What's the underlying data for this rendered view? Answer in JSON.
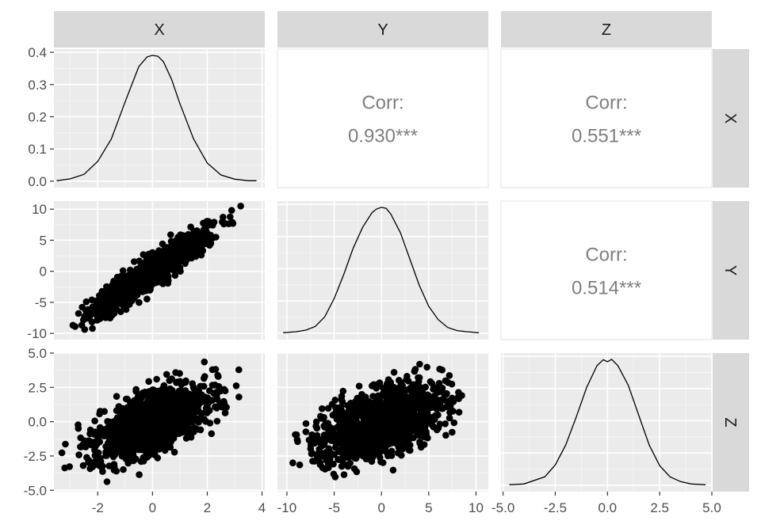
{
  "chart_data": {
    "type": "pairs",
    "variables": [
      "X",
      "Y",
      "Z"
    ],
    "column_strips": [
      "X",
      "Y",
      "Z"
    ],
    "row_strips": [
      "X",
      "Y",
      "Z"
    ],
    "x_axes": [
      {
        "range": [
          -3.6,
          4.1
        ],
        "ticks": [
          -2,
          0,
          2,
          4
        ],
        "tick_labels": [
          "-2",
          "0",
          "2",
          "4"
        ]
      },
      {
        "range": [
          -11.0,
          11.3
        ],
        "ticks": [
          -10,
          -5,
          0,
          5,
          10
        ],
        "tick_labels": [
          "-10",
          "-5",
          "0",
          "5",
          "10"
        ]
      },
      {
        "range": [
          -5.1,
          5.0
        ],
        "ticks": [
          -5.0,
          -2.5,
          0.0,
          2.5,
          5.0
        ],
        "tick_labels": [
          "-5.0",
          "-2.5",
          "0.0",
          "2.5",
          "5.0"
        ]
      }
    ],
    "y_axes": [
      {
        "range": [
          -0.02,
          0.41
        ],
        "ticks": [
          0.0,
          0.1,
          0.2,
          0.3,
          0.4
        ],
        "tick_labels": [
          "0.0",
          "0.1",
          "0.2",
          "0.3",
          "0.4"
        ]
      },
      {
        "range": [
          -11.0,
          11.3
        ],
        "ticks": [
          -10,
          -5,
          0,
          5,
          10
        ],
        "tick_labels": [
          "-10",
          "-5",
          "0",
          "5",
          "10"
        ]
      },
      {
        "range": [
          -5.1,
          5.0
        ],
        "ticks": [
          -5.0,
          -2.5,
          0.0,
          2.5,
          5.0
        ],
        "tick_labels": [
          "-5.0",
          "-2.5",
          "0.0",
          "2.5",
          "5.0"
        ]
      }
    ],
    "correlations": [
      {
        "pair": [
          "X",
          "Y"
        ],
        "label": "Corr:",
        "value_text": "0.930***",
        "value": 0.93
      },
      {
        "pair": [
          "X",
          "Z"
        ],
        "label": "Corr:",
        "value_text": "0.551***",
        "value": 0.551
      },
      {
        "pair": [
          "Y",
          "Z"
        ],
        "label": "Corr:",
        "value_text": "0.514***",
        "value": 0.514
      }
    ],
    "densities": {
      "X": {
        "x": [
          -3.5,
          -3.0,
          -2.5,
          -2.0,
          -1.5,
          -1.0,
          -0.5,
          -0.2,
          0.0,
          0.2,
          0.4,
          0.7,
          1.0,
          1.5,
          2.0,
          2.5,
          3.0,
          3.5,
          3.8
        ],
        "y": [
          0.0,
          0.006,
          0.02,
          0.06,
          0.13,
          0.245,
          0.355,
          0.385,
          0.39,
          0.387,
          0.37,
          0.315,
          0.24,
          0.13,
          0.055,
          0.018,
          0.005,
          0.0,
          0.0
        ]
      },
      "Y": {
        "x": [
          -10.4,
          -9,
          -8,
          -7,
          -6,
          -5,
          -4,
          -3,
          -2,
          -1,
          -0.5,
          0,
          0.5,
          1,
          2,
          3,
          4,
          5,
          6,
          7,
          8,
          9,
          10.3
        ],
        "y": [
          0.0,
          0.002,
          0.005,
          0.012,
          0.03,
          0.065,
          0.11,
          0.16,
          0.2,
          0.228,
          0.235,
          0.238,
          0.236,
          0.225,
          0.19,
          0.14,
          0.09,
          0.05,
          0.025,
          0.01,
          0.004,
          0.002,
          0.0
        ]
      },
      "Z": {
        "x": [
          -4.7,
          -4.0,
          -3.0,
          -2.5,
          -2.0,
          -1.5,
          -1.0,
          -0.5,
          -0.2,
          0.0,
          0.2,
          0.5,
          1.0,
          1.5,
          2.0,
          2.5,
          3.0,
          3.5,
          4.0,
          4.7
        ],
        "y": [
          0.0,
          0.002,
          0.02,
          0.05,
          0.1,
          0.17,
          0.245,
          0.3,
          0.315,
          0.31,
          0.316,
          0.3,
          0.25,
          0.175,
          0.1,
          0.048,
          0.02,
          0.008,
          0.002,
          0.0
        ]
      }
    },
    "scatter_relationships": [
      {
        "x": "X",
        "y": "Y",
        "correlation": 0.93
      },
      {
        "x": "X",
        "y": "Z",
        "correlation": 0.551
      },
      {
        "x": "Y",
        "y": "Z",
        "correlation": 0.514
      }
    ]
  }
}
